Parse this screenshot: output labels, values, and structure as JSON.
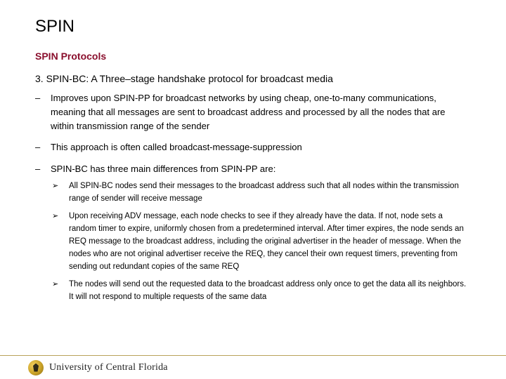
{
  "colors": {
    "background": "#ffffff",
    "title": "#000000",
    "subtitle": "#8a0f2d",
    "body_text": "#000000",
    "footer_rule": "#b9a25a",
    "seal_gradient": [
      "#f4cf5e",
      "#c9a227",
      "#8a6b12"
    ]
  },
  "typography": {
    "title_size_pt": 24,
    "subtitle_size_pt": 14,
    "h3_size_pt": 14,
    "l1_size_pt": 13,
    "l2_size_pt": 11.5,
    "line_height": 1.55,
    "body_font": "Arial",
    "footer_font": "Georgia"
  },
  "title": "SPIN",
  "subtitle": "SPIN Protocols",
  "heading3": {
    "number": "3.",
    "text": "SPIN-BC: A Three–stage handshake protocol for broadcast media"
  },
  "bullets_l1": [
    "Improves upon SPIN-PP for broadcast networks by using cheap, one-to-many communications, meaning that all messages are sent to broadcast address and processed by all the nodes that are within transmission range of the sender",
    "This approach is often called broadcast-message-suppression",
    "SPIN-BC has three main differences from SPIN-PP are:"
  ],
  "l1_marker": "–",
  "bullets_l2": [
    "All SPIN-BC nodes send their messages to the broadcast address such that all nodes within the transmission range of sender will receive message",
    "Upon receiving ADV message, each node checks to see if they already have the data. If not, node sets a random timer to expire, uniformly chosen from a predetermined interval. After timer expires, the node sends an REQ message to the broadcast address, including the original advertiser in the header of message. When the nodes who are not original advertiser receive the REQ, they cancel their own request timers, preventing from sending out redundant copies of the same REQ",
    "The nodes will send out the requested data to the broadcast address only once to get the data all its neighbors. It will not respond to multiple requests of the same data"
  ],
  "l2_marker": "➢",
  "footer": {
    "institution": "University of Central Florida",
    "seal_icon": "pegasus-seal-icon"
  }
}
